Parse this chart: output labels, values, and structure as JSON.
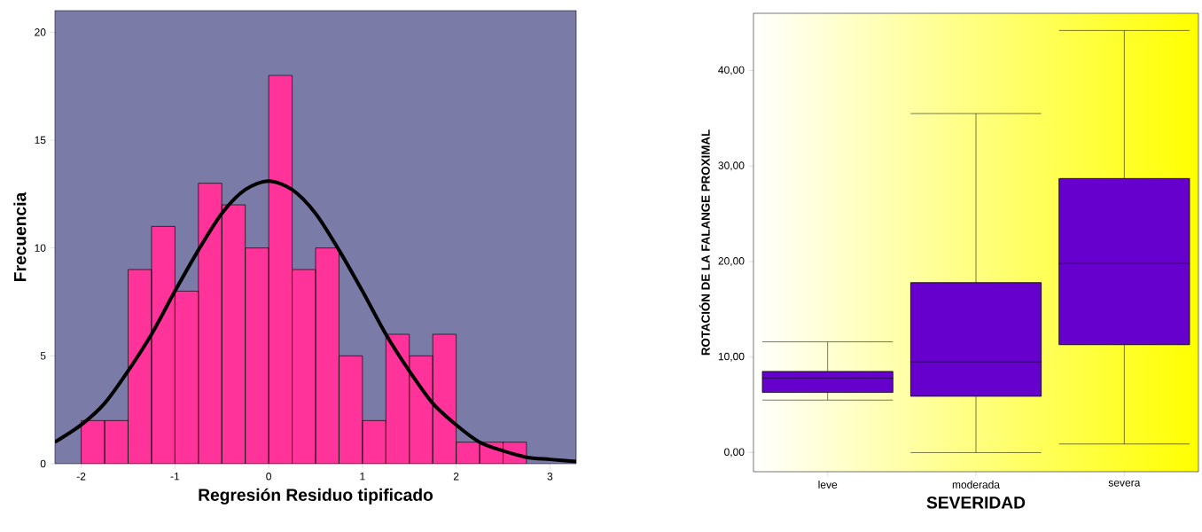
{
  "chart_data": [
    {
      "type": "histogram",
      "xlabel": "Regresión Residuo tipificado",
      "ylabel": "Frecuencia",
      "color": "#ff3399",
      "bins": [
        -2,
        -1.75,
        -1.5,
        -1.25,
        -1,
        -0.75,
        -0.5,
        -0.25,
        0,
        0.25,
        0.5,
        0.75,
        1,
        1.25,
        1.5,
        1.75,
        2,
        2.25,
        2.5,
        2.75
      ],
      "values": [
        2,
        2,
        9,
        11,
        8,
        13,
        12,
        10,
        18,
        9,
        10,
        5,
        2,
        6,
        5,
        6,
        1,
        1,
        1
      ],
      "series": [
        {
          "type": "line",
          "color": "#000000",
          "x": [
            -2.28,
            -2,
            -1.75,
            -1.5,
            -1.25,
            -1,
            -0.75,
            -0.5,
            -0.25,
            0,
            0.25,
            0.5,
            0.75,
            1,
            1.25,
            1.5,
            1.75,
            2,
            2.25,
            2.5,
            2.75,
            3,
            3.28
          ],
          "values": [
            1.0,
            1.8,
            2.8,
            4.3,
            6.0,
            8.0,
            9.9,
            11.6,
            12.7,
            13.1,
            12.7,
            11.6,
            9.9,
            8.0,
            6.0,
            4.3,
            2.8,
            1.8,
            1.0,
            0.6,
            0.3,
            0.2,
            0.1
          ]
        }
      ],
      "xlim": [
        -2.28,
        3.28
      ],
      "ylim": [
        0,
        21
      ],
      "xticks": [
        -2,
        -1,
        0,
        1,
        2,
        3
      ],
      "yticks": [
        0,
        5,
        10,
        15,
        20
      ]
    },
    {
      "type": "box",
      "xlabel": "SEVERIDAD",
      "ylabel": "ROTACIÓN DE LA FALANGE PROXIMAL",
      "color": "#6600cc",
      "categories": [
        "leve",
        "moderada",
        "severa"
      ],
      "boxes": [
        {
          "low": 5.5,
          "q1": 6.3,
          "median": 7.8,
          "q3": 8.5,
          "high": 11.6
        },
        {
          "low": 0,
          "q1": 5.9,
          "median": 9.5,
          "q3": 17.8,
          "high": 35.5
        },
        {
          "low": 0.9,
          "q1": 11.3,
          "median": 19.8,
          "q3": 28.7,
          "high": 44.2
        }
      ],
      "ylim": [
        -2,
        46
      ],
      "yticks": [
        {
          "value": 0,
          "label": "0,00"
        },
        {
          "value": 10,
          "label": "10,00"
        },
        {
          "value": 20,
          "label": "20,00"
        },
        {
          "value": 30,
          "label": "30,00"
        },
        {
          "value": 40,
          "label": "40,00"
        }
      ]
    }
  ]
}
